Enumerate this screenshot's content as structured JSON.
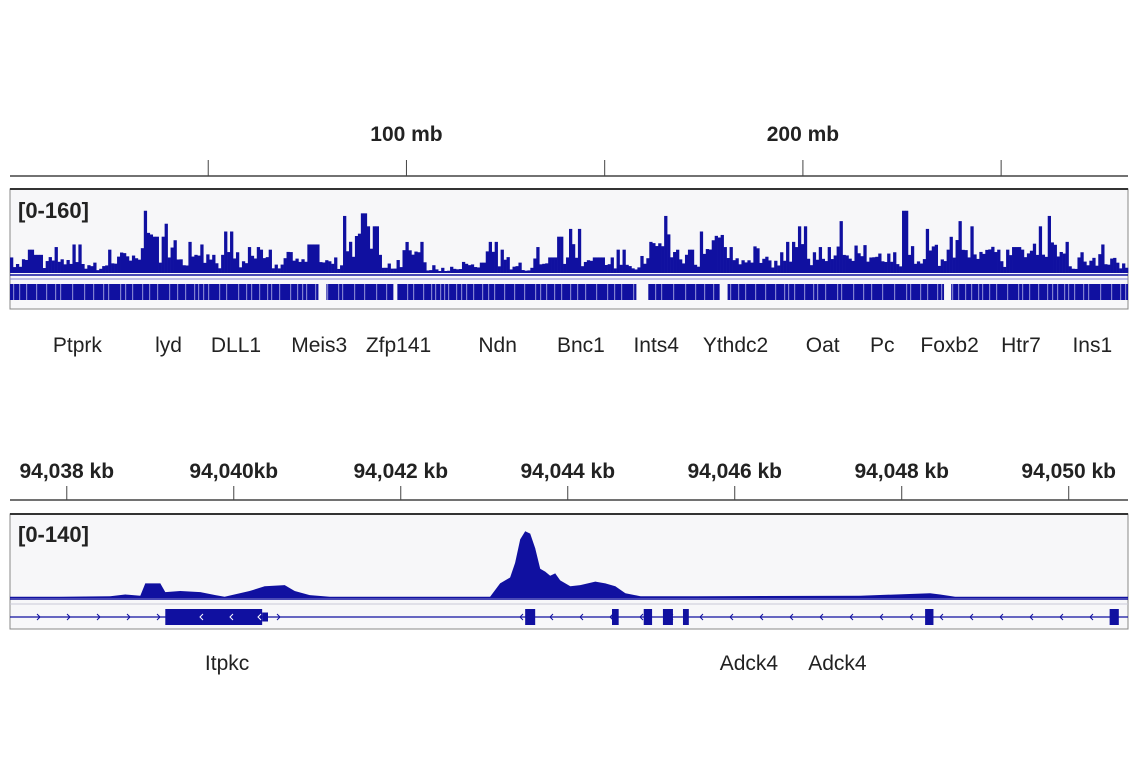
{
  "colors": {
    "signal": "#1010a0",
    "signal_light": "#7f7fd0",
    "panel_bg": "#f7f7f9",
    "border": "#888888",
    "border_top": "#333333"
  },
  "chart_data": [
    {
      "type": "area",
      "view": "genome-wide",
      "x_unit": "mb",
      "xlim": [
        0,
        282
      ],
      "ticks": [
        50,
        100,
        150,
        200,
        250
      ],
      "tick_labels": [
        {
          "value": 100,
          "label": "100 mb"
        },
        {
          "value": 200,
          "label": "200 mb"
        }
      ],
      "range_label": "[0-160]",
      "ylim": [
        0,
        160
      ],
      "values": [
        30,
        45,
        35,
        50,
        40,
        55,
        30,
        20,
        45,
        60,
        50,
        120,
        70,
        95,
        40,
        60,
        55,
        35,
        80,
        40,
        50,
        45,
        25,
        70,
        40,
        55,
        45,
        30,
        110,
        115,
        90,
        35,
        25,
        100,
        60,
        15,
        10,
        12,
        35,
        20,
        60,
        45,
        20,
        10,
        50,
        30,
        70,
        85,
        40,
        30,
        30,
        45,
        25,
        60,
        90,
        110,
        70,
        45,
        80,
        120,
        50,
        60,
        80,
        45,
        40,
        60,
        90,
        40,
        50,
        100,
        55,
        90,
        60,
        70,
        40,
        120,
        60,
        85,
        45,
        100,
        90,
        70,
        80,
        45,
        50,
        85,
        90,
        110,
        60,
        30,
        40,
        55,
        60,
        35
      ],
      "feature_gaps_mb": [
        [
          77.8,
          79.8
        ],
        [
          96.7,
          97.7
        ],
        [
          158,
          161
        ],
        [
          179,
          181
        ],
        [
          235.6,
          237.4
        ]
      ],
      "genes": [
        {
          "name": "Ptprk",
          "mb": 17
        },
        {
          "name": "lyd",
          "mb": 40
        },
        {
          "name": "DLL1",
          "mb": 57
        },
        {
          "name": "Meis3",
          "mb": 78
        },
        {
          "name": "Zfp141",
          "mb": 98
        },
        {
          "name": "Ndn",
          "mb": 123
        },
        {
          "name": "Bnc1",
          "mb": 144
        },
        {
          "name": "Ints4",
          "mb": 163
        },
        {
          "name": "Ythdc2",
          "mb": 183
        },
        {
          "name": "Oat",
          "mb": 205
        },
        {
          "name": "Pc",
          "mb": 220
        },
        {
          "name": "Foxb2",
          "mb": 237
        },
        {
          "name": "Htr7",
          "mb": 255
        },
        {
          "name": "Ins1",
          "mb": 273
        }
      ]
    },
    {
      "type": "area",
      "view": "locus",
      "x_unit": "kb",
      "xlim": [
        94037.32,
        94050.71
      ],
      "ticks": [
        94038,
        94040,
        94042,
        94044,
        94046,
        94048,
        94050
      ],
      "tick_labels": [
        "94,038 kb",
        "94,040kb",
        "94,042 kb",
        "94,044 kb",
        "94,046 kb",
        "94,048 kb",
        "94,050 kb"
      ],
      "range_label": "[0-140]",
      "ylim": [
        0,
        140
      ],
      "points": [
        [
          94037.32,
          2
        ],
        [
          94037.92,
          2
        ],
        [
          94038.52,
          3
        ],
        [
          94038.7,
          6
        ],
        [
          94038.88,
          4
        ],
        [
          94038.94,
          25
        ],
        [
          94039.12,
          25
        ],
        [
          94039.18,
          10
        ],
        [
          94039.36,
          12
        ],
        [
          94039.6,
          10
        ],
        [
          94039.78,
          5
        ],
        [
          94039.89,
          2
        ],
        [
          94040.19,
          12
        ],
        [
          94040.37,
          20
        ],
        [
          94040.61,
          22
        ],
        [
          94040.73,
          12
        ],
        [
          94040.91,
          5
        ],
        [
          94041.15,
          2
        ],
        [
          94043.07,
          2
        ],
        [
          94043.19,
          25
        ],
        [
          94043.31,
          35
        ],
        [
          94043.37,
          60
        ],
        [
          94043.43,
          100
        ],
        [
          94043.49,
          114
        ],
        [
          94043.55,
          110
        ],
        [
          94043.61,
          85
        ],
        [
          94043.67,
          50
        ],
        [
          94043.73,
          45
        ],
        [
          94043.79,
          38
        ],
        [
          94043.85,
          42
        ],
        [
          94043.91,
          30
        ],
        [
          94044.03,
          20
        ],
        [
          94044.15,
          22
        ],
        [
          94044.33,
          28
        ],
        [
          94044.45,
          25
        ],
        [
          94044.57,
          20
        ],
        [
          94044.69,
          8
        ],
        [
          94044.87,
          3
        ],
        [
          94045.58,
          3
        ],
        [
          94047.5,
          4
        ],
        [
          94048.34,
          8
        ],
        [
          94048.46,
          6
        ],
        [
          94048.64,
          2
        ],
        [
          94050.71,
          2
        ]
      ],
      "transcript_span": [
        94037.32,
        94050.71
      ],
      "exons": [
        [
          94039.18,
          94040.34,
          "thick"
        ],
        [
          94040.34,
          94040.41,
          "thin"
        ],
        [
          94043.49,
          94043.61,
          "thick"
        ],
        [
          94044.53,
          94044.61,
          "thick"
        ],
        [
          94044.91,
          94045.01,
          "thick"
        ],
        [
          94045.14,
          94045.26,
          "thick"
        ],
        [
          94045.38,
          94045.45,
          "thick"
        ],
        [
          94048.28,
          94048.38,
          "thick"
        ],
        [
          94050.49,
          94050.6,
          "thick"
        ]
      ],
      "genes": [
        {
          "name": "Itpkc",
          "kb": 94039.92
        },
        {
          "name": "Adck4",
          "kb": 94046.17
        },
        {
          "name": "Adck4",
          "kb": 94047.23
        }
      ]
    }
  ]
}
